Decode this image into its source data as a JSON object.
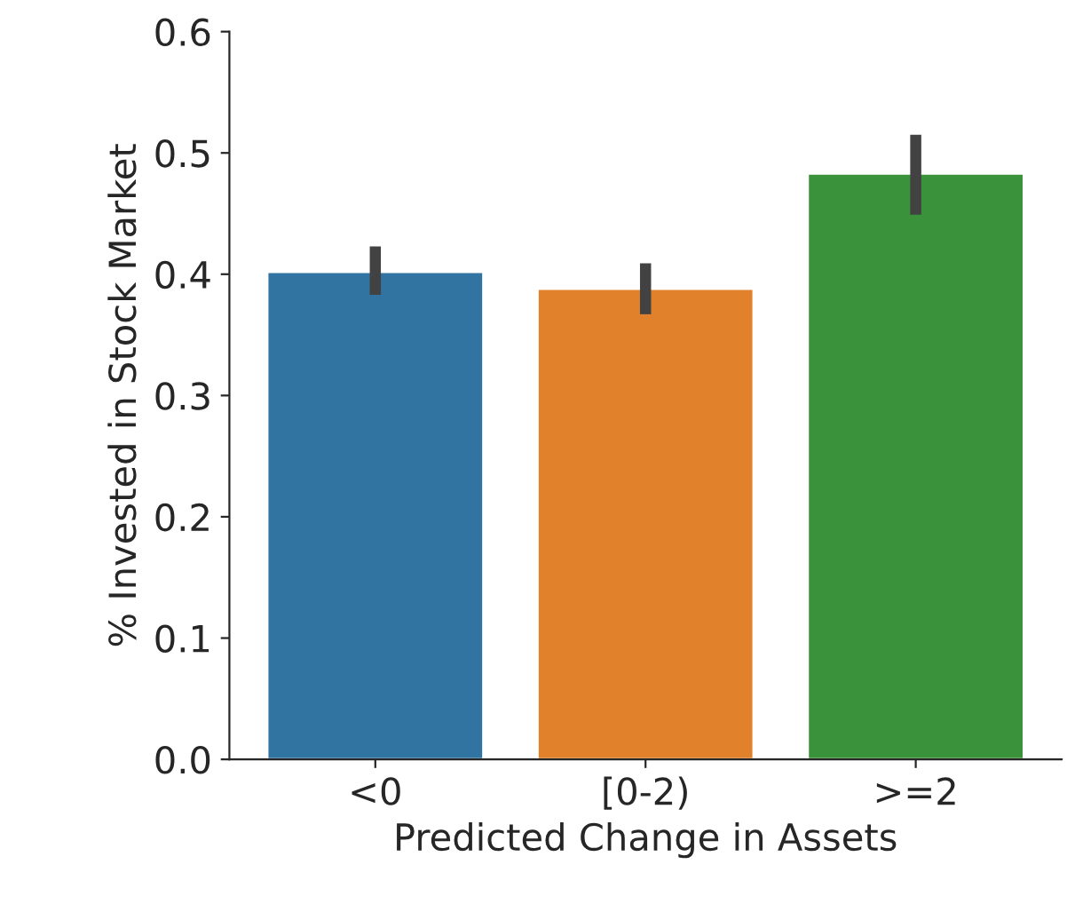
{
  "chart_data": {
    "type": "bar",
    "xlabel": "Predicted Change in Assets",
    "ylabel": "% Invested in Stock Market",
    "categories": [
      "<0",
      "[0-2)",
      ">=2"
    ],
    "values": [
      0.402,
      0.388,
      0.483
    ],
    "colors": [
      "#3274a1",
      "#e1812c",
      "#3a923a"
    ],
    "errors": [
      [
        0.383,
        0.423
      ],
      [
        0.367,
        0.409
      ],
      [
        0.449,
        0.515
      ]
    ],
    "ylim": [
      0,
      0.6
    ],
    "yticks": [
      {
        "value": 0,
        "label": "0.0"
      },
      0.1,
      0.2,
      0.3,
      0.4,
      0.5,
      0.6
    ],
    "grid": false
  }
}
